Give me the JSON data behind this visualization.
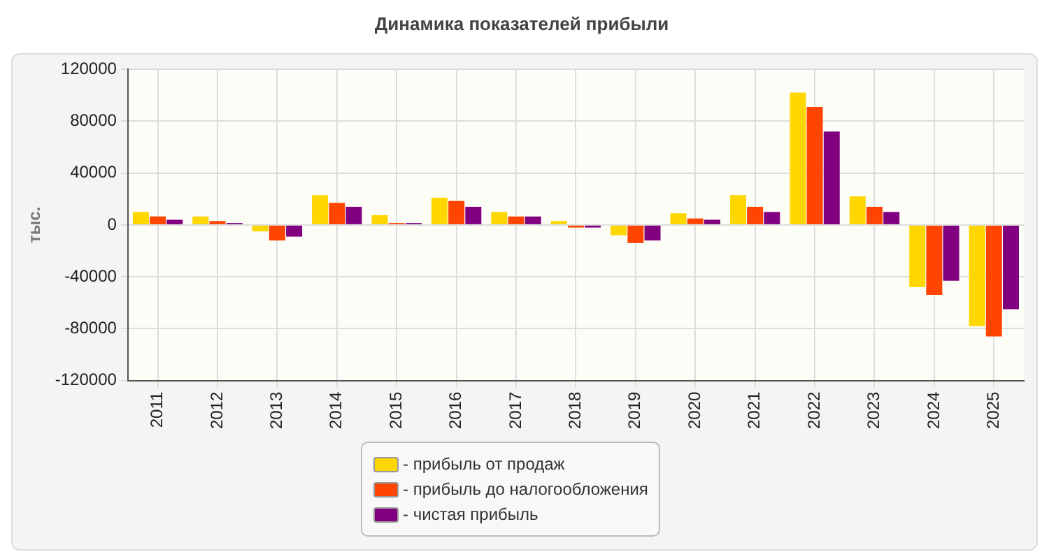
{
  "chart_data": {
    "type": "bar",
    "title": "Динамика показателей прибыли",
    "ylabel": "тыс.",
    "categories": [
      "2011",
      "2012",
      "2013",
      "2014",
      "2015",
      "2016",
      "2017",
      "2018",
      "2019",
      "2020",
      "2021",
      "2022",
      "2023",
      "2024",
      "2025"
    ],
    "series": [
      {
        "name": "- прибыль от продаж",
        "color": "#ffd700",
        "values": [
          10000,
          6500,
          -5000,
          23000,
          7500,
          21000,
          10000,
          3000,
          -8000,
          9000,
          23000,
          102000,
          22000,
          -48000,
          -78000
        ]
      },
      {
        "name": "- прибыль до налогообложения",
        "color": "#ff4500",
        "values": [
          6500,
          3000,
          -12000,
          17000,
          1500,
          18500,
          6500,
          -2000,
          -14000,
          5000,
          14000,
          91000,
          14000,
          -54000,
          -86000
        ]
      },
      {
        "name": "- чистая прибыль",
        "color": "#800080",
        "values": [
          4000,
          1500,
          -9000,
          14000,
          1500,
          14000,
          6500,
          -2000,
          -12000,
          4000,
          10000,
          72000,
          10000,
          -43000,
          -65000
        ]
      }
    ],
    "ylim": [
      -120000,
      120000
    ],
    "yticks": [
      -120000,
      -80000,
      -40000,
      0,
      40000,
      80000,
      120000
    ],
    "grid": true,
    "legend": "bottom"
  }
}
